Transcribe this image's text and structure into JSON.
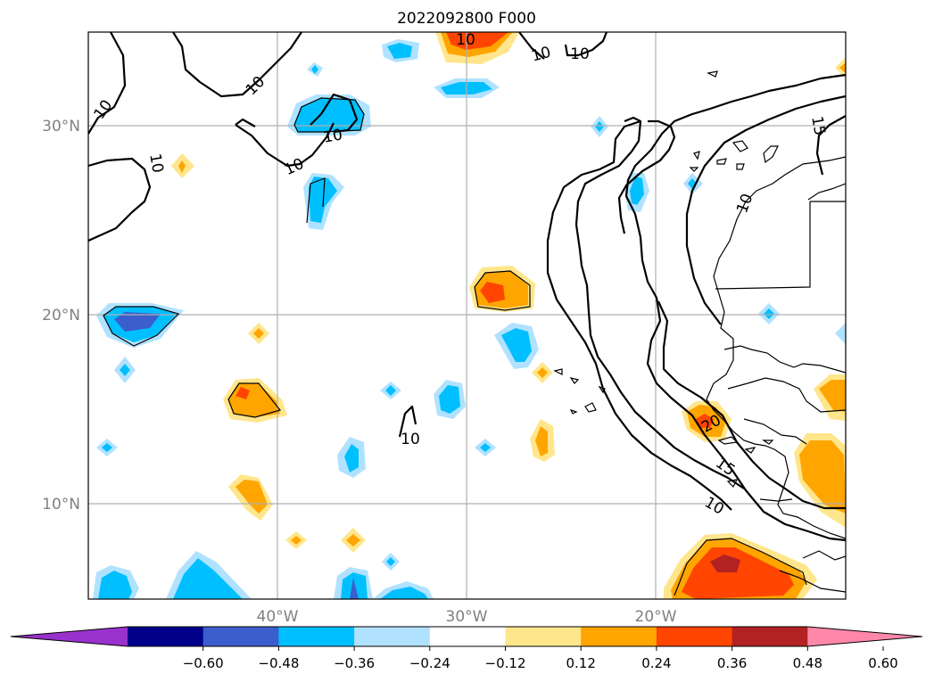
{
  "title": "2022092800 F000",
  "lat_labels": [
    "30°N",
    "20°N",
    "10°N"
  ],
  "lon_labels": [
    "40°W",
    "30°W",
    "20°W"
  ],
  "contour_labels": [
    "10",
    "10",
    "10",
    "10",
    "10",
    "10",
    "10",
    "10",
    "10",
    "15",
    "10",
    "20",
    "15",
    "10"
  ],
  "colorbar": {
    "ticks": [
      "−0.60",
      "−0.48",
      "−0.36",
      "−0.24",
      "−0.12",
      "0.12",
      "0.24",
      "0.36",
      "0.48",
      "0.60"
    ],
    "colors": [
      "#9932cc",
      "#00008b",
      "#3a5fcd",
      "#00bfff",
      "#b0e2ff",
      "#ffffff",
      "#ffe68c",
      "#ffa500",
      "#ff4500",
      "#b22222",
      "#ff88aa"
    ]
  },
  "colors": {
    "neg_light": "#b0e2ff",
    "neg_mid": "#00bfff",
    "neg_dark": "#3a5fcd",
    "pos_light": "#ffe68c",
    "pos_mid": "#ffa500",
    "pos_strong": "#ff4500",
    "pos_dark": "#b22222"
  }
}
